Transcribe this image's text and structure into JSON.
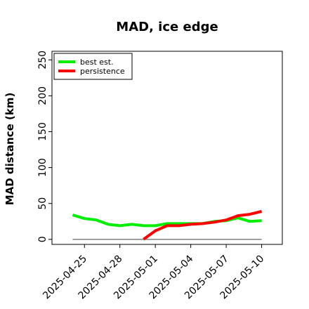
{
  "chart_data": {
    "type": "line",
    "title": "MAD, ice edge",
    "xlabel": "",
    "ylabel": "MAD distance (km)",
    "x_ticks": [
      "2025-04-25",
      "2025-04-28",
      "2025-05-01",
      "2025-05-04",
      "2025-05-07",
      "2025-05-10"
    ],
    "y_ticks": [
      0,
      50,
      100,
      150,
      200,
      250
    ],
    "xlim": [
      "2025-04-22T06:00",
      "2025-05-11T18:00"
    ],
    "ylim": [
      -7,
      262
    ],
    "grid": false,
    "legend_position": "top-left",
    "reference_line": {
      "x": [
        "2025-04-24",
        "2025-05-10"
      ],
      "y": [
        0,
        0
      ],
      "color": "#808080"
    },
    "series": [
      {
        "name": "best est.",
        "color": "#00ee00",
        "x": [
          "2025-04-24",
          "2025-04-25",
          "2025-04-26",
          "2025-04-27",
          "2025-04-28",
          "2025-04-29",
          "2025-04-30",
          "2025-05-01",
          "2025-05-02",
          "2025-05-03",
          "2025-05-04",
          "2025-05-05",
          "2025-05-06",
          "2025-05-07",
          "2025-05-08",
          "2025-05-09",
          "2025-05-10"
        ],
        "y": [
          34,
          29,
          27,
          21,
          19,
          21,
          19,
          19,
          22,
          22,
          22,
          22,
          25,
          26,
          30,
          25,
          26
        ]
      },
      {
        "name": "persistence",
        "color": "#ff0000",
        "x": [
          "2025-04-30",
          "2025-05-01",
          "2025-05-02",
          "2025-05-03",
          "2025-05-04",
          "2025-05-05",
          "2025-05-06",
          "2025-05-07",
          "2025-05-08",
          "2025-05-09",
          "2025-05-10"
        ],
        "y": [
          0,
          12,
          19,
          19,
          21,
          22,
          24,
          27,
          33,
          35,
          39
        ]
      }
    ]
  }
}
